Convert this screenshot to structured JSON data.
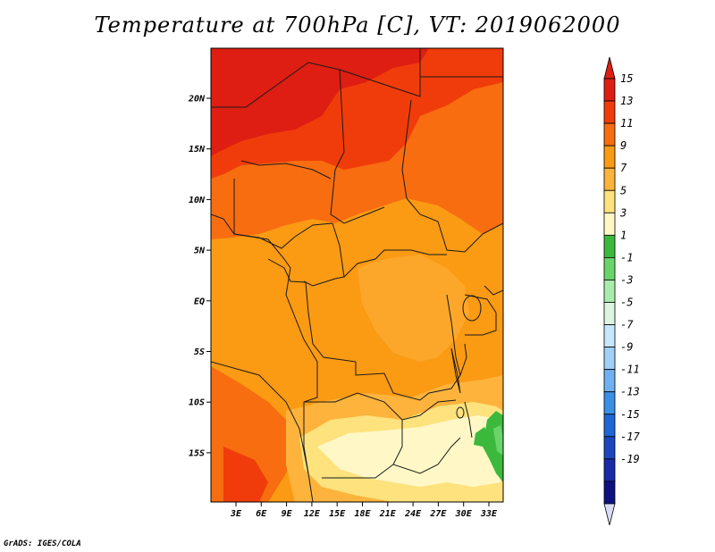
{
  "title": "Temperature at 700hPa [C], VT: 2019062000",
  "credit": "GrADS: IGES/COLA",
  "map": {
    "lat_ticks": [
      "20N",
      "15N",
      "10N",
      "5N",
      "EQ",
      "5S",
      "10S",
      "15S"
    ],
    "lon_ticks": [
      "3E",
      "6E",
      "9E",
      "12E",
      "15E",
      "18E",
      "21E",
      "24E",
      "27E",
      "30E",
      "33E"
    ]
  },
  "colorbar": {
    "labels": [
      "15",
      "13",
      "11",
      "9",
      "7",
      "5",
      "3",
      "1",
      "-1",
      "-3",
      "-5",
      "-7",
      "-9",
      "-11",
      "-13",
      "-15",
      "-17",
      "-19"
    ],
    "colors": [
      "#de1e12",
      "#f03c0a",
      "#f76d10",
      "#fb9a13",
      "#fdb33c",
      "#fde27d",
      "#fff8c6",
      "#3cb93c",
      "#6ad46a",
      "#a8ecac",
      "#dcf5e0",
      "#c6e6fb",
      "#9fd0f7",
      "#6fb1f0",
      "#3c8fe6",
      "#2067d6",
      "#1b47be",
      "#1b2aa6",
      "#0d1280"
    ],
    "top_arrow_color": "#de1e12",
    "bottom_arrow_color": "#d9dcf5"
  }
}
